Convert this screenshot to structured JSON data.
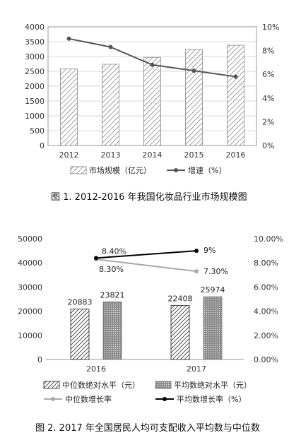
{
  "chart_data": [
    {
      "type": "bar",
      "caption": "图 1. 2012-2016 年我国化妆品行业市场规模图",
      "categories": [
        "2012",
        "2013",
        "2014",
        "2015",
        "2016"
      ],
      "y_left": {
        "ylim": [
          0,
          4000
        ],
        "ticks": [
          "0",
          "500",
          "1000",
          "1500",
          "2000",
          "2500",
          "3000",
          "3500",
          "4000"
        ]
      },
      "y_right": {
        "ylim": [
          0,
          10
        ],
        "ticks": [
          "0%",
          "2%",
          "4%",
          "6%",
          "8%",
          "10%"
        ]
      },
      "series": [
        {
          "name": "市场规模（亿元）",
          "type": "bar",
          "axis": "left",
          "pattern": "hatch",
          "values": [
            2580,
            2740,
            2970,
            3230,
            3380
          ]
        },
        {
          "name": "增速（%）",
          "type": "line",
          "axis": "right",
          "color": "#555555",
          "values": [
            9.0,
            8.3,
            6.8,
            6.3,
            5.8
          ]
        }
      ],
      "grid": true,
      "legend": "bottom"
    },
    {
      "type": "bar",
      "caption": "图 2. 2017 年全国居民人均可支配收入平均数与中位数",
      "categories": [
        "2016",
        "2017"
      ],
      "y_left": {
        "ylim": [
          0,
          50000
        ],
        "ticks": [
          "0",
          "10000",
          "20000",
          "30000",
          "40000",
          "50000"
        ]
      },
      "y_right": {
        "ylim": [
          0,
          10
        ],
        "ticks": [
          "0.00%",
          "2.00%",
          "4.00%",
          "6.00%",
          "8.00%",
          "10.00%"
        ]
      },
      "series": [
        {
          "name": "中位数绝对水平（元）",
          "type": "bar",
          "axis": "left",
          "pattern": "crosshatch",
          "values": [
            20883,
            22408
          ],
          "labels": [
            "20883",
            "22408"
          ]
        },
        {
          "name": "平均数绝对水平（元）",
          "type": "bar",
          "axis": "left",
          "pattern": "dots",
          "values": [
            23821,
            25974
          ],
          "labels": [
            "23821",
            "25974"
          ]
        },
        {
          "name": "中位数增长率",
          "type": "line",
          "axis": "right",
          "color": "#aaaaaa",
          "values": [
            8.3,
            7.3
          ],
          "labels": [
            "8.30%",
            "7.30%"
          ]
        },
        {
          "name": "平均数增长率（%）",
          "type": "line",
          "axis": "right",
          "color": "#000000",
          "values": [
            8.4,
            9.0
          ],
          "labels": [
            "8.40%",
            "9%"
          ]
        }
      ],
      "grid": false,
      "legend": "bottom"
    }
  ]
}
